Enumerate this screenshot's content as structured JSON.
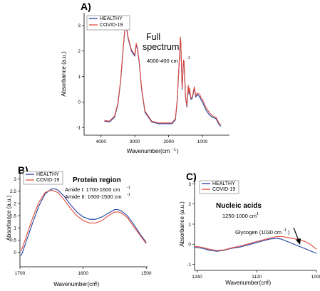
{
  "legend": {
    "items": [
      {
        "label": "HEALTHY",
        "color": "#1f3fa0"
      },
      {
        "label": "COVID-19",
        "color": "#e04a3a"
      }
    ]
  },
  "chart_data": [
    {
      "panel": "A)",
      "type": "line",
      "annotations": [
        "Full",
        "spectrum",
        "4000-400 cm",
        "-1"
      ],
      "xlabel": "Wavenumber(cm",
      "xlabel_sup": "-1",
      "xlabel_end": ")",
      "ylabel": "Absorbance (a.u.)",
      "xlim": [
        4500,
        200
      ],
      "ylim": [
        -1.3,
        3.5
      ],
      "xticks": [
        4000,
        3000,
        2000,
        1000
      ],
      "yticks": [
        -1,
        0,
        1,
        2,
        3
      ],
      "series": [
        {
          "name": "HEALTHY",
          "x": [
            3900,
            3750,
            3600,
            3500,
            3420,
            3350,
            3290,
            3250,
            3200,
            3100,
            3000,
            2960,
            2920,
            2870,
            2800,
            2700,
            2500,
            2300,
            2100,
            1900,
            1800,
            1750,
            1700,
            1650,
            1640,
            1600,
            1560,
            1545,
            1500,
            1460,
            1420,
            1400,
            1380,
            1340,
            1300,
            1240,
            1200,
            1150,
            1080,
            1050,
            1000,
            900,
            800,
            700,
            600,
            500,
            450
          ],
          "y": [
            -0.75,
            -0.78,
            -0.6,
            -0.1,
            0.8,
            2.0,
            2.9,
            2.95,
            2.5,
            2.0,
            1.8,
            2.25,
            2.05,
            1.55,
            0.5,
            -0.4,
            -0.78,
            -0.85,
            -0.85,
            -0.85,
            -0.7,
            0.0,
            1.2,
            2.5,
            2.3,
            0.5,
            1.6,
            1.55,
            0.2,
            -0.2,
            0.6,
            0.3,
            0.5,
            0.1,
            0.15,
            0.55,
            0.2,
            0.3,
            0.2,
            0.1,
            0.0,
            -0.3,
            -0.5,
            -0.6,
            -0.65,
            -0.9,
            -0.95
          ]
        },
        {
          "name": "COVID-19",
          "x": [
            3900,
            3750,
            3600,
            3500,
            3420,
            3350,
            3290,
            3250,
            3200,
            3100,
            3000,
            2960,
            2920,
            2870,
            2800,
            2700,
            2500,
            2300,
            2100,
            1900,
            1800,
            1750,
            1700,
            1650,
            1640,
            1600,
            1560,
            1545,
            1500,
            1460,
            1420,
            1400,
            1380,
            1340,
            1300,
            1240,
            1200,
            1150,
            1080,
            1050,
            1000,
            900,
            800,
            700,
            600,
            500,
            450
          ],
          "y": [
            -0.72,
            -0.75,
            -0.55,
            -0.05,
            0.85,
            2.05,
            2.95,
            3.0,
            2.55,
            2.05,
            1.85,
            2.3,
            2.1,
            1.6,
            0.55,
            -0.35,
            -0.75,
            -0.82,
            -0.82,
            -0.82,
            -0.65,
            0.05,
            1.25,
            2.55,
            2.35,
            0.55,
            1.65,
            1.6,
            0.25,
            -0.15,
            0.65,
            0.35,
            0.55,
            0.15,
            0.2,
            0.6,
            0.25,
            0.35,
            0.3,
            0.2,
            0.1,
            -0.2,
            -0.4,
            -0.55,
            -0.6,
            -0.85,
            -0.9
          ]
        }
      ]
    },
    {
      "panel": "B)",
      "type": "line",
      "annotations": [
        "Protein region",
        "Amide I: 1700-1600 cm",
        "-1",
        "Amide II: 1600-1500 cm",
        "-1"
      ],
      "xlabel": "Wavenumber(cm",
      "xlabel_sup": "-1",
      "xlabel_end": ")",
      "ylabel": "Absorbance (a.u.)",
      "xlim": [
        1700,
        1498
      ],
      "ylim": [
        -0.6,
        3.4
      ],
      "xticks": [
        1700,
        1600,
        1500
      ],
      "yticks": [
        0,
        0.5,
        1,
        1.5,
        2,
        2.5,
        3
      ],
      "series": [
        {
          "name": "HEALTHY",
          "x": [
            1698,
            1690,
            1680,
            1670,
            1660,
            1650,
            1645,
            1640,
            1630,
            1620,
            1610,
            1600,
            1590,
            1580,
            1570,
            1560,
            1550,
            1545,
            1540,
            1530,
            1520,
            1510,
            1500
          ],
          "y": [
            -0.15,
            0.45,
            1.2,
            1.9,
            2.4,
            2.6,
            2.6,
            2.55,
            2.3,
            1.95,
            1.65,
            1.45,
            1.35,
            1.35,
            1.45,
            1.6,
            1.75,
            1.75,
            1.7,
            1.5,
            1.15,
            0.75,
            0.4
          ]
        },
        {
          "name": "COVID-19",
          "x": [
            1698,
            1690,
            1680,
            1670,
            1660,
            1650,
            1645,
            1640,
            1630,
            1620,
            1610,
            1600,
            1590,
            1580,
            1570,
            1560,
            1550,
            1545,
            1540,
            1530,
            1520,
            1510,
            1500
          ],
          "y": [
            0.05,
            0.65,
            1.4,
            2.05,
            2.45,
            2.55,
            2.5,
            2.45,
            2.15,
            1.8,
            1.5,
            1.3,
            1.2,
            1.2,
            1.3,
            1.5,
            1.65,
            1.65,
            1.62,
            1.42,
            1.05,
            0.7,
            0.35
          ]
        }
      ]
    },
    {
      "panel": "C)",
      "type": "line",
      "annotations": [
        "Nucleic acids",
        "1250-1000 cm",
        "-1",
        "Glycogen (1030 cm",
        "-1",
        ")"
      ],
      "xlabel": "Wavenumber(cm",
      "xlabel_sup": "-1",
      "xlabel_end": ")",
      "ylabel": "Absorbance (a.u.)",
      "xlim": [
        1245,
        1000
      ],
      "ylim": [
        -1.3,
        3.3
      ],
      "xticks": [
        1240,
        1120,
        1000
      ],
      "yticks": [
        -1,
        0,
        1,
        2,
        3
      ],
      "series": [
        {
          "name": "HEALTHY",
          "x": [
            1245,
            1230,
            1215,
            1200,
            1185,
            1170,
            1155,
            1140,
            1125,
            1110,
            1095,
            1080,
            1070,
            1060,
            1050,
            1040,
            1030,
            1020,
            1010,
            1000
          ],
          "y": [
            -0.15,
            -0.2,
            -0.3,
            -0.35,
            -0.3,
            -0.2,
            -0.15,
            -0.05,
            0.05,
            0.15,
            0.25,
            0.3,
            0.25,
            0.15,
            0.05,
            -0.05,
            -0.15,
            -0.25,
            -0.35,
            -0.45
          ]
        },
        {
          "name": "COVID-19",
          "x": [
            1245,
            1230,
            1215,
            1200,
            1185,
            1170,
            1155,
            1140,
            1125,
            1110,
            1095,
            1080,
            1070,
            1060,
            1050,
            1040,
            1030,
            1020,
            1010,
            1000
          ],
          "y": [
            -0.1,
            -0.15,
            -0.25,
            -0.32,
            -0.28,
            -0.18,
            -0.1,
            0.0,
            0.1,
            0.2,
            0.3,
            0.38,
            0.38,
            0.35,
            0.3,
            0.25,
            0.2,
            0.1,
            -0.05,
            -0.25
          ]
        }
      ]
    }
  ]
}
